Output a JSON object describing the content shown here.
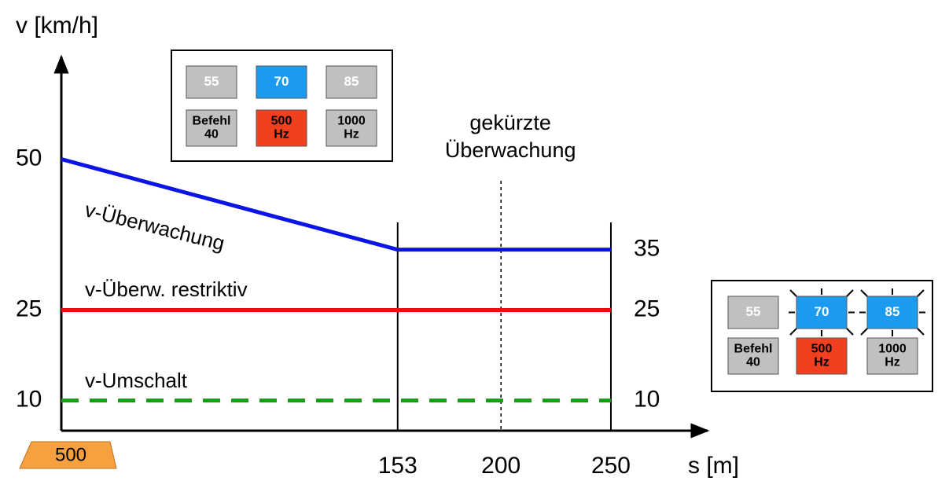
{
  "chart_data": {
    "type": "line",
    "y_label": "v [km/h]",
    "x_label": "s [m]",
    "x": [
      0,
      153,
      250
    ],
    "xlim": [
      0,
      294
    ],
    "ylim": [
      5,
      67
    ],
    "xticks": [
      153,
      200,
      250
    ],
    "yticks": [
      10,
      25,
      50
    ],
    "series": [
      {
        "name": "v-Überwachung",
        "color": "#0a14e6",
        "values": [
          50,
          35,
          35
        ]
      },
      {
        "name": "v-Überw. restriktiv",
        "color": "#f00a0a",
        "values": [
          25,
          25,
          25
        ]
      },
      {
        "name": "v-Umschalt",
        "color": "#12a012",
        "values": [
          10,
          10,
          10
        ],
        "dashed": true
      }
    ],
    "annotation": [
      "gekürzte",
      "Überwachung"
    ],
    "magnet": "500",
    "panels": [
      {
        "buttons": [
          {
            "text": [
              "55"
            ],
            "color": "#c0c0c0"
          },
          {
            "text": [
              "70"
            ],
            "color": "#1a9bf0"
          },
          {
            "text": [
              "85"
            ],
            "color": "#c0c0c0"
          },
          {
            "text": [
              "Befehl",
              "40"
            ],
            "color": "#c0c0c0"
          },
          {
            "text": [
              "500",
              "Hz"
            ],
            "color": "#f04020"
          },
          {
            "text": [
              "1000",
              "Hz"
            ],
            "color": "#c0c0c0"
          }
        ]
      },
      {
        "buttons": [
          {
            "text": [
              "55"
            ],
            "color": "#c0c0c0"
          },
          {
            "text": [
              "70"
            ],
            "color": "#1a9bf0",
            "flashing": true
          },
          {
            "text": [
              "85"
            ],
            "color": "#1a9bf0",
            "flashing": true
          },
          {
            "text": [
              "Befehl",
              "40"
            ],
            "color": "#c0c0c0"
          },
          {
            "text": [
              "500",
              "Hz"
            ],
            "color": "#f04020"
          },
          {
            "text": [
              "1000",
              "Hz"
            ],
            "color": "#c0c0c0"
          }
        ]
      }
    ]
  }
}
